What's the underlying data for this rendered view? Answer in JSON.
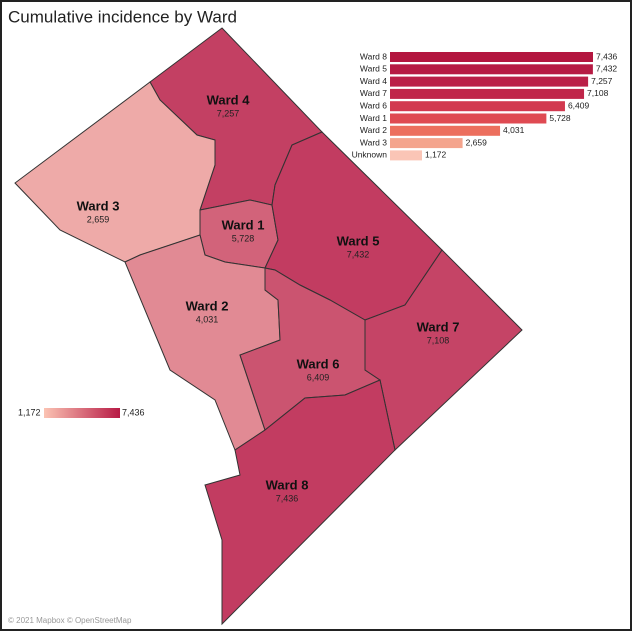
{
  "title": "Cumulative incidence by Ward",
  "map": {
    "wards": [
      {
        "name": "Ward 4",
        "value": 7257,
        "label": "7,257"
      },
      {
        "name": "Ward 3",
        "value": 2659,
        "label": "2,659"
      },
      {
        "name": "Ward 1",
        "value": 5728,
        "label": "5,728"
      },
      {
        "name": "Ward 5",
        "value": 7432,
        "label": "7,432"
      },
      {
        "name": "Ward 2",
        "value": 4031,
        "label": "4,031"
      },
      {
        "name": "Ward 6",
        "value": 6409,
        "label": "6,409"
      },
      {
        "name": "Ward 7",
        "value": 7108,
        "label": "7,108"
      },
      {
        "name": "Ward 8",
        "value": 7436,
        "label": "7,436"
      }
    ]
  },
  "legend": {
    "min": {
      "value": 1172,
      "label": "1,172"
    },
    "max": {
      "value": 7436,
      "label": "7,436"
    },
    "colors": [
      "#fbc3b3",
      "#b71a45"
    ]
  },
  "chart_data": {
    "type": "bar",
    "orientation": "horizontal",
    "categories": [
      "Ward 8",
      "Ward 5",
      "Ward 4",
      "Ward 7",
      "Ward 6",
      "Ward 1",
      "Ward 2",
      "Ward 3",
      "Unknown"
    ],
    "values": [
      7436,
      7432,
      7257,
      7108,
      6409,
      5728,
      4031,
      2659,
      1172
    ],
    "value_labels": [
      "7,436",
      "7,432",
      "7,257",
      "7,108",
      "6,409",
      "5,728",
      "4,031",
      "2,659",
      "1,172"
    ],
    "colors": [
      "#b3163f",
      "#b61a43",
      "#ba1f47",
      "#c0264a",
      "#d2394f",
      "#df4a52",
      "#ec6f5e",
      "#f4a48d",
      "#fac5b6"
    ]
  },
  "attribution": "© 2021 Mapbox © OpenStreetMap"
}
